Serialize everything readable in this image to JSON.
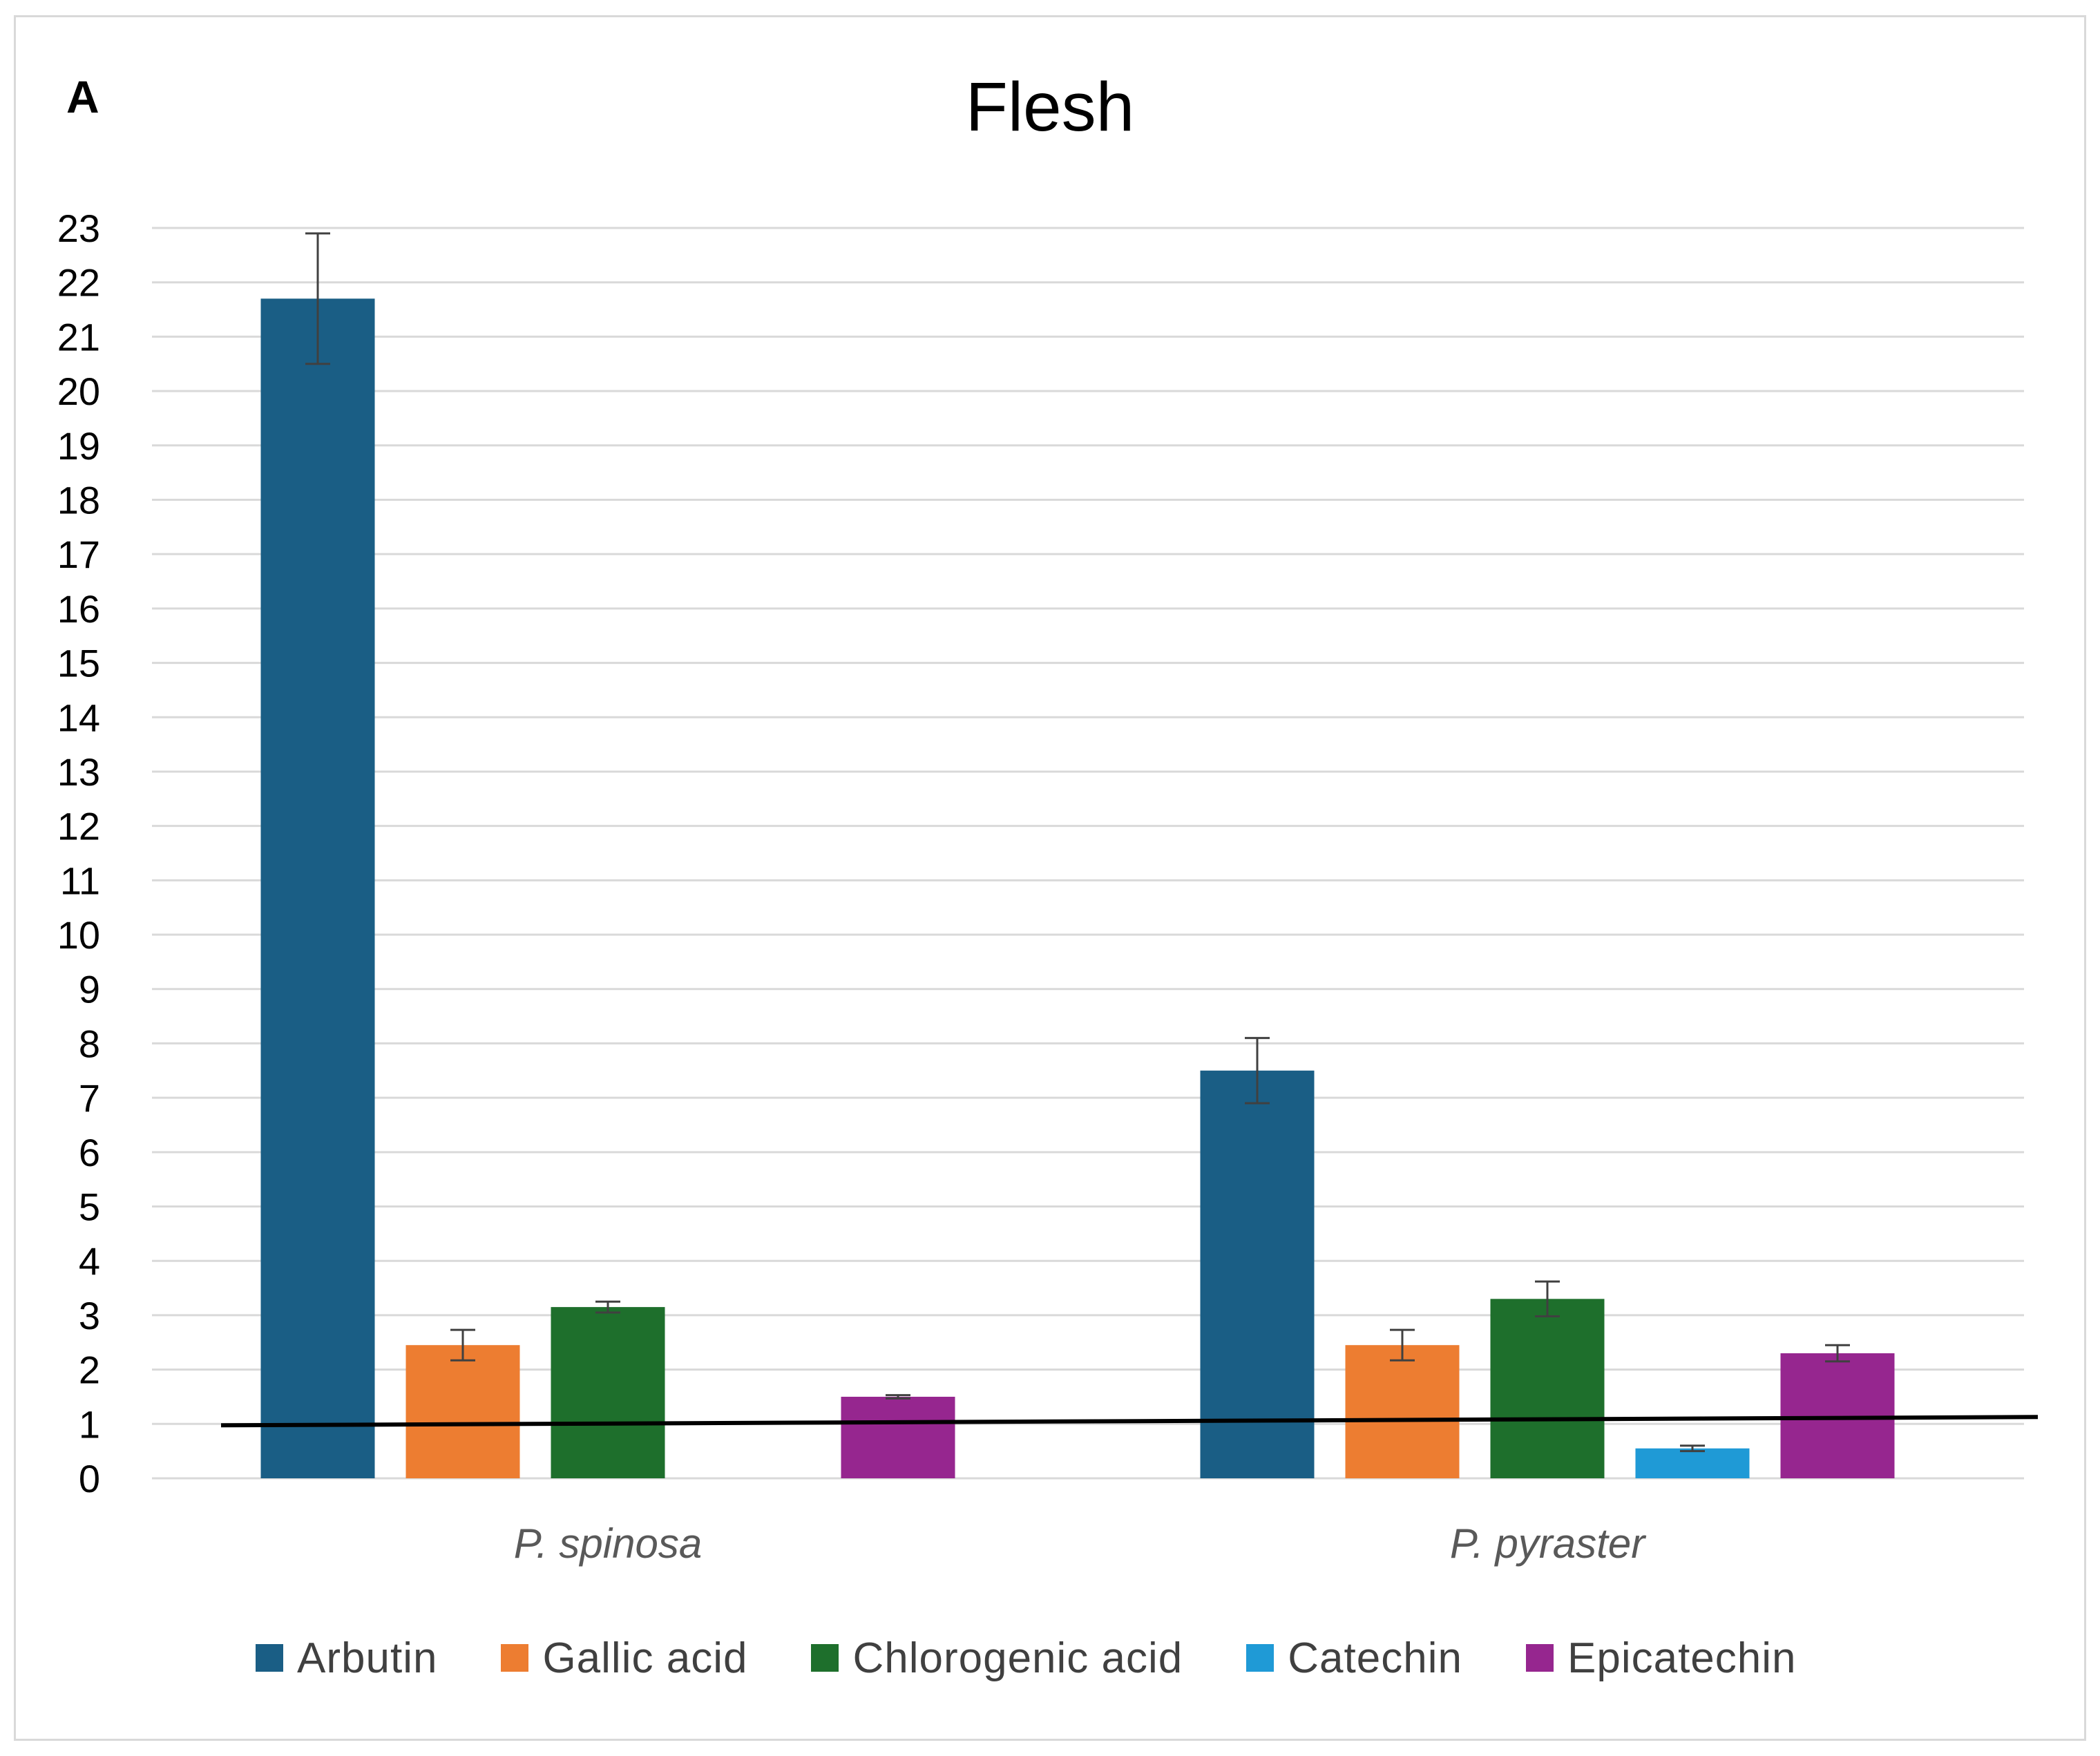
{
  "panel_label": "A",
  "chart_data": {
    "type": "bar",
    "title": "Flesh",
    "xlabel": "",
    "ylabel": "",
    "categories": [
      "P. spinosa",
      "P. pyraster"
    ],
    "ylim": [
      0,
      23
    ],
    "yticks": [
      "0",
      "1",
      "2",
      "3",
      "4",
      "5",
      "6",
      "7",
      "8",
      "9",
      "10",
      "11",
      "12",
      "13",
      "14",
      "15",
      "16",
      "17",
      "18",
      "19",
      "20",
      "21",
      "22",
      "23"
    ],
    "grid": true,
    "legend_position": "bottom",
    "reference_line_value": 1,
    "series": [
      {
        "name": "Arbutin",
        "color": "#1a5e85",
        "values": [
          21.7,
          7.5
        ],
        "errors": [
          1.2,
          0.6
        ]
      },
      {
        "name": "Gallic acid",
        "color": "#ed7d31",
        "values": [
          2.45,
          2.45
        ],
        "errors": [
          0.28,
          0.28
        ]
      },
      {
        "name": "Chlorogenic acid",
        "color": "#1e6f2c",
        "values": [
          3.15,
          3.3
        ],
        "errors": [
          0.1,
          0.32
        ]
      },
      {
        "name": "Catechin",
        "color": "#1f9ad6",
        "values": [
          null,
          0.55
        ],
        "errors": [
          null,
          0.05
        ]
      },
      {
        "name": "Epicatechin",
        "color": "#96268f",
        "values": [
          1.5,
          2.3
        ],
        "errors": [
          0.03,
          0.15
        ]
      }
    ]
  }
}
